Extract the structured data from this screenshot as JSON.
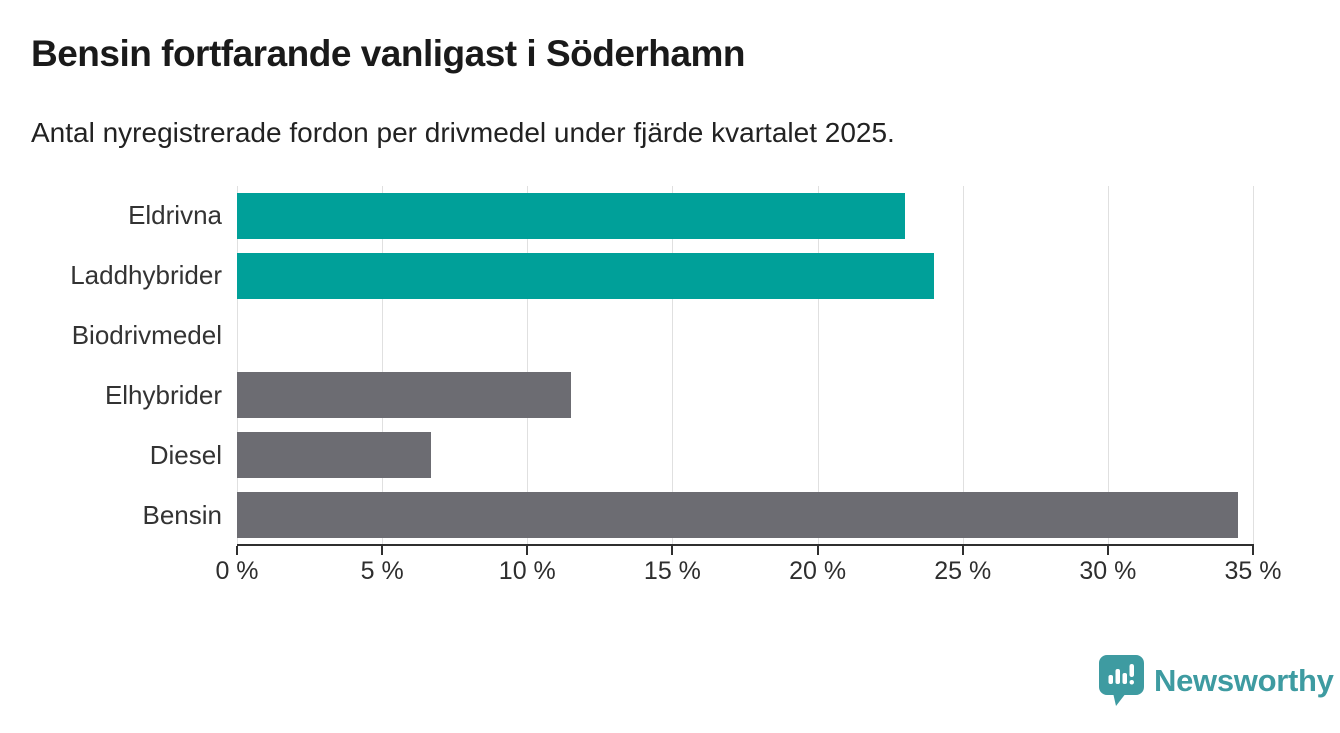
{
  "title": "Bensin fortfarande vanligast i Söderhamn",
  "subtitle": "Antal nyregistrerade fordon per drivmedel under fjärde kvartalet 2025.",
  "chart_data": {
    "type": "bar",
    "orientation": "horizontal",
    "categories": [
      "Eldrivna",
      "Laddhybrider",
      "Biodrivmedel",
      "Elhybrider",
      "Diesel",
      "Bensin"
    ],
    "values": [
      23.0,
      24.0,
      0,
      11.5,
      6.7,
      34.5
    ],
    "unit": "%",
    "bar_colors": [
      "#00a099",
      "#00a099",
      "#6c6c72",
      "#6c6c72",
      "#6c6c72",
      "#6c6c72"
    ],
    "xlim": [
      0,
      35
    ],
    "x_ticks": [
      0,
      5,
      10,
      15,
      20,
      25,
      30,
      35
    ],
    "x_tick_labels": [
      "0 %",
      "5 %",
      "10 %",
      "15 %",
      "20 %",
      "25 %",
      "30 %",
      "35 %"
    ],
    "grid": true,
    "grid_color": "#e0e0e0",
    "axis_color": "#2f2f2f",
    "legend": "none"
  },
  "colors": {
    "highlight_teal": "#00a099",
    "neutral_gray": "#6c6c72",
    "title_text": "#1a1a1a",
    "label_text": "#333333",
    "brand_teal": "#3e9ba1"
  },
  "branding": {
    "name": "Newsworthy",
    "logo_icon": "speech-bubble-bar-chart-icon"
  }
}
